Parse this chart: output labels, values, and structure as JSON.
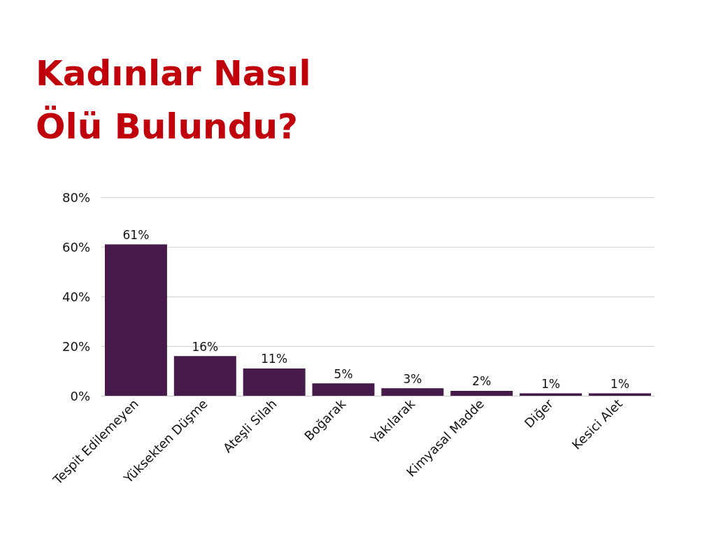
{
  "chart_data": {
    "type": "bar",
    "title": "Kadınlar Nasıl Ölü Bulundu?",
    "categories": [
      "Tespit Edilemeyen",
      "Yüksekten Düşme",
      "Ateşli Silah",
      "Boğarak",
      "Yakılarak",
      "Kimyasal Madde",
      "Diğer",
      "Kesici Alet"
    ],
    "values": [
      61,
      16,
      11,
      5,
      3,
      2,
      1,
      1
    ],
    "value_labels": [
      "61%",
      "16%",
      "11%",
      "5%",
      "3%",
      "2%",
      "1%",
      "1%"
    ],
    "color": "#461a4a",
    "ylim": [
      0,
      80
    ],
    "yticks": [
      {
        "value": 0,
        "label": "0%"
      },
      {
        "value": 20,
        "label": "20%"
      },
      {
        "value": 40,
        "label": "40%"
      },
      {
        "value": 60,
        "label": "60%"
      },
      {
        "value": 80,
        "label": "80%"
      }
    ],
    "grid": "y"
  }
}
